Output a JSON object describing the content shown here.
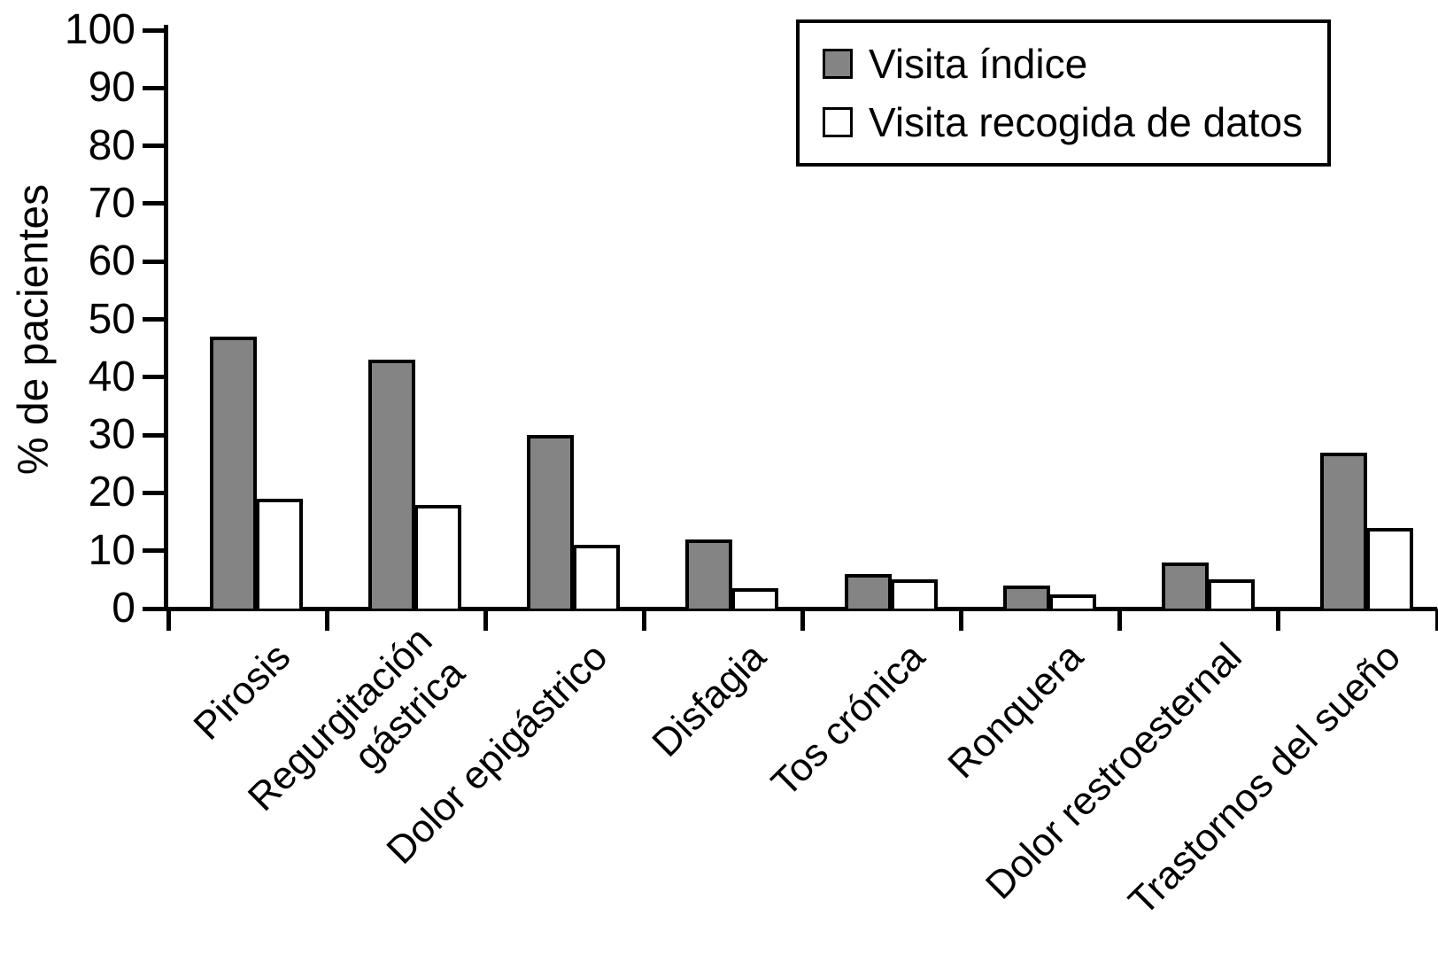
{
  "figure": {
    "background": "#ffffff",
    "text_color": "#000000"
  },
  "chart_data": {
    "type": "bar",
    "title": "",
    "xlabel": "",
    "ylabel": "% de pacientes",
    "ylim": [
      0,
      100
    ],
    "ytick_step": 10,
    "yticks": [
      0,
      10,
      20,
      30,
      40,
      50,
      60,
      70,
      80,
      90,
      100
    ],
    "grid": false,
    "legend_position": "top-right",
    "categories": [
      "Pirosis",
      "Regurgitación gástrica",
      "Dolor epigástrico",
      "Disfagia",
      "Tos crónica",
      "Ronquera",
      "Dolor restroesternal",
      "Trastornos del sueño"
    ],
    "categories_display": [
      [
        "Pirosis"
      ],
      [
        "Regurgitación",
        "gástrica"
      ],
      [
        "Dolor epigástrico"
      ],
      [
        "Disfagia"
      ],
      [
        "Tos crónica"
      ],
      [
        "Ronquera"
      ],
      [
        "Dolor restroesternal"
      ],
      [
        "Trastornos del sueño"
      ]
    ],
    "series": [
      {
        "name": "Visita índice",
        "color": "#848484",
        "values": [
          47,
          43,
          30,
          12,
          6,
          4,
          8,
          27
        ]
      },
      {
        "name": "Visita recogida de datos",
        "color": "#ffffff",
        "values": [
          19,
          18,
          11,
          3.5,
          5,
          2.5,
          5,
          14
        ]
      }
    ]
  },
  "colors": {
    "bar_outline": "#000000",
    "axis": "#000000",
    "series_1_fill": "#848484",
    "series_2_fill": "#ffffff"
  }
}
